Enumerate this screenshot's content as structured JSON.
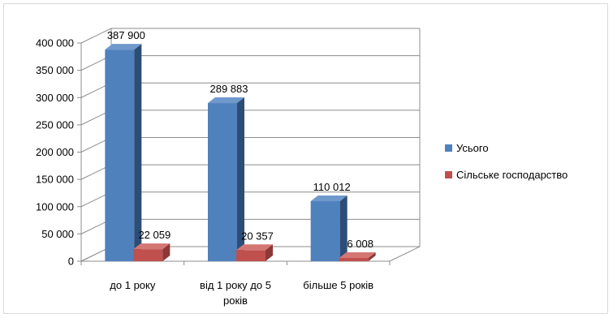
{
  "chart_data": {
    "type": "bar",
    "categories": [
      [
        "до 1 року"
      ],
      [
        "від 1 року до 5",
        "років"
      ],
      [
        "більше 5 років"
      ]
    ],
    "series": [
      {
        "name": "Усього",
        "values": [
          387900,
          289883,
          110012
        ],
        "labels": [
          "387 900",
          "289 883",
          "110 012"
        ],
        "color": "#4f81bd",
        "side_color": "#2c4d75",
        "top_color": "#6f98cc"
      },
      {
        "name": "Сільське господарство",
        "values": [
          22059,
          20357,
          6008
        ],
        "labels": [
          "22 059",
          "20 357",
          "6 008"
        ],
        "color": "#c0504d",
        "side_color": "#8c3836",
        "top_color": "#d47674"
      }
    ],
    "ylim": [
      0,
      400000
    ],
    "yticks": [
      0,
      50000,
      100000,
      150000,
      200000,
      250000,
      300000,
      350000,
      400000
    ],
    "ytick_labels": [
      "0",
      "50 000",
      "100 000",
      "150 000",
      "200 000",
      "250 000",
      "300 000",
      "350 000",
      "400 000"
    ],
    "grid": true,
    "legend_position": "right",
    "style": "3d-column"
  }
}
